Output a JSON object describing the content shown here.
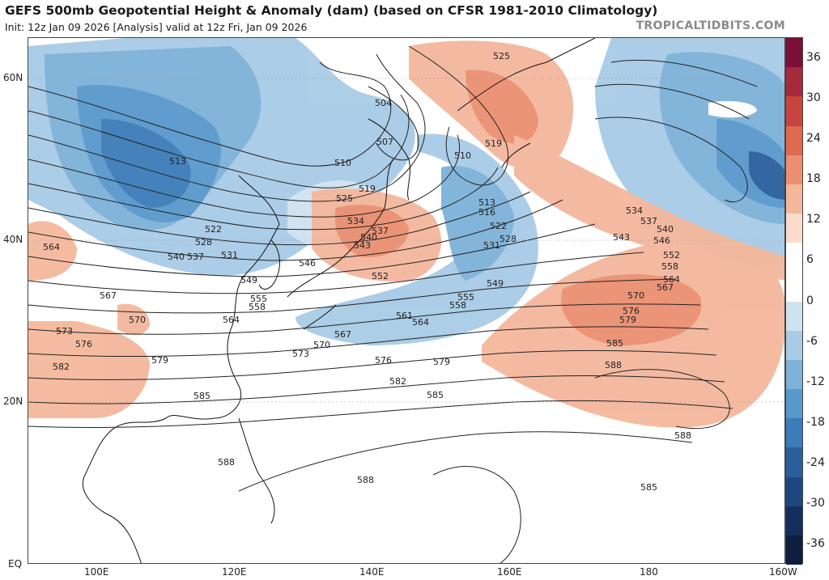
{
  "header": {
    "title": "GEFS 500mb Geopotential Height & Anomaly (dam) (based on CFSR 1981-2010 Climatology)",
    "subtitle": "Init: 12z Jan 09 2026   [Analysis]   valid at 12z Fri, Jan 09 2026",
    "credit": "TROPICALTIDBITS.COM"
  },
  "lat_labels": [
    "60N",
    "40N",
    "20N",
    "EQ"
  ],
  "lon_labels": [
    "100E",
    "120E",
    "140E",
    "160E",
    "180",
    "160W"
  ],
  "colorbar": {
    "labels": [
      "36",
      "30",
      "24",
      "18",
      "12",
      "6",
      "0",
      "-6",
      "-12",
      "-18",
      "-24",
      "-30",
      "-36"
    ],
    "colors": [
      "#7a0f3a",
      "#a52a3c",
      "#c8453f",
      "#de6a50",
      "#eb8f70",
      "#f4b79c",
      "#fbdccc",
      "#ffffff",
      "#ffffff",
      "#cfe2f0",
      "#a8cbe6",
      "#7db2d9",
      "#5898cc",
      "#3c7cb8",
      "#2a5f9c",
      "#1e4780",
      "#152f5c",
      "#0d1f3e"
    ]
  },
  "contour_labels": {
    "jet_west": [
      "564",
      "567",
      "570",
      "573",
      "576",
      "579",
      "582",
      "585",
      "588"
    ],
    "east_asia": [
      "513",
      "522",
      "528",
      "537",
      "540",
      "531",
      "546",
      "549",
      "555",
      "558",
      "564",
      "510",
      "519",
      "525",
      "504",
      "507"
    ],
    "japan": [
      "534",
      "537",
      "540",
      "543",
      "552"
    ],
    "pacific_lows": [
      "510",
      "513",
      "516",
      "522",
      "528",
      "531",
      "525",
      "519"
    ],
    "pacific_mid": [
      "549",
      "555",
      "558",
      "561",
      "564",
      "567",
      "570",
      "573",
      "576",
      "579",
      "582",
      "585",
      "588"
    ],
    "east": [
      "534",
      "537",
      "540",
      "543",
      "546",
      "552",
      "558",
      "564",
      "567",
      "570",
      "576",
      "579",
      "585",
      "588",
      "588",
      "585"
    ]
  }
}
